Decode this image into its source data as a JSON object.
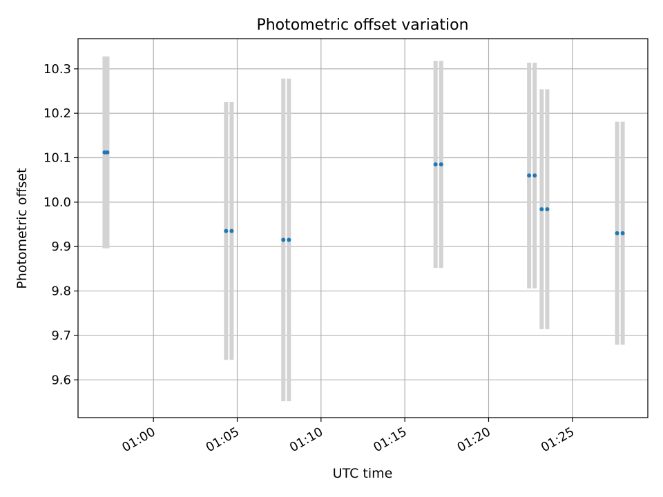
{
  "chart_data": {
    "type": "scatter",
    "title": "Photometric offset variation",
    "xlabel": "UTC time",
    "ylabel": "Photometric offset",
    "x_unit": "UTC time (HH:MM)",
    "xlim": [
      "00:55:30",
      "01:29:30"
    ],
    "ylim": [
      9.515,
      10.368
    ],
    "x_ticks": [
      "01:00",
      "01:05",
      "01:10",
      "01:15",
      "01:20",
      "01:25"
    ],
    "y_ticks": [
      "9.6",
      "9.7",
      "9.8",
      "9.9",
      "10.0",
      "10.1",
      "10.2",
      "10.3"
    ],
    "grid": true,
    "errorbar_color": "#d3d3d3",
    "point_color": "#1f77b4",
    "series": [
      {
        "points": [
          {
            "x": "00:57:05",
            "y": 10.112,
            "yerr": 0.216
          },
          {
            "x": "00:57:15",
            "y": 10.112,
            "yerr": 0.216
          },
          {
            "x": "01:04:20",
            "y": 9.935,
            "yerr": 0.29
          },
          {
            "x": "01:04:40",
            "y": 9.935,
            "yerr": 0.29
          },
          {
            "x": "01:07:45",
            "y": 9.915,
            "yerr": 0.363
          },
          {
            "x": "01:08:05",
            "y": 9.915,
            "yerr": 0.363
          },
          {
            "x": "01:16:50",
            "y": 10.085,
            "yerr": 0.233
          },
          {
            "x": "01:17:10",
            "y": 10.085,
            "yerr": 0.233
          },
          {
            "x": "01:22:25",
            "y": 10.06,
            "yerr": 0.254
          },
          {
            "x": "01:22:45",
            "y": 10.06,
            "yerr": 0.254
          },
          {
            "x": "01:23:10",
            "y": 9.984,
            "yerr": 0.27
          },
          {
            "x": "01:23:30",
            "y": 9.984,
            "yerr": 0.27
          },
          {
            "x": "01:27:40",
            "y": 9.93,
            "yerr": 0.251
          },
          {
            "x": "01:28:00",
            "y": 9.93,
            "yerr": 0.251
          }
        ]
      }
    ]
  }
}
